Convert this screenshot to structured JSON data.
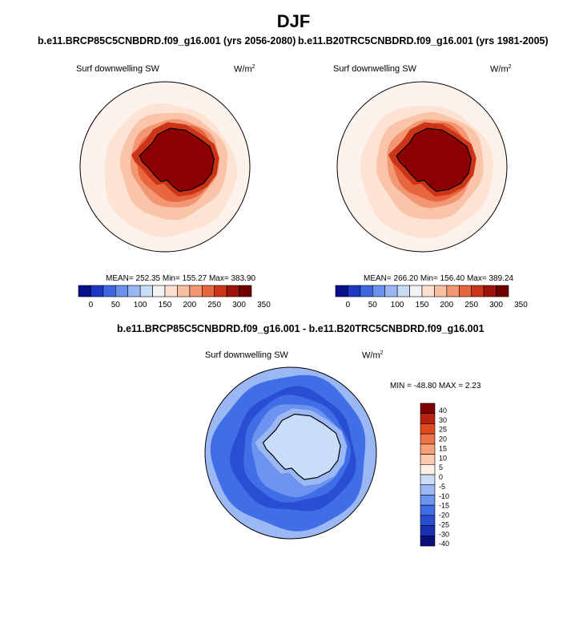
{
  "title": "DJF",
  "colors": {
    "sequential": [
      "#08108a",
      "#1c37c4",
      "#3c67de",
      "#6a92ec",
      "#9bb7f3",
      "#c8dcf8",
      "#f3f3f3",
      "#fde0d0",
      "#f8bfa3",
      "#f29673",
      "#e8663e",
      "#cc3418",
      "#a0130a",
      "#6e0000"
    ],
    "diverging": [
      "#0a0f7a",
      "#1a2fb3",
      "#2a4ed2",
      "#3f6ee6",
      "#6b93ef",
      "#9bb8f5",
      "#c9dcf8",
      "#fff0e6",
      "#fbc9ab",
      "#f6a077",
      "#ee7447",
      "#de4b1f",
      "#b8230d",
      "#7e0000"
    ],
    "outline": "#000000"
  },
  "chart_data": [
    {
      "type": "heatmap",
      "projection": "polar stereographic (south)",
      "title": "b.e11.BRCP85C5CNBDRD.f09_g16.001 (yrs 2056-2080)",
      "variable": "Surf downwelling SW",
      "units": "W/m",
      "units_sup": "2",
      "stats": "MEAN= 252.35  Min= 155.27  Max= 383.90",
      "mean": 252.35,
      "min": 155.27,
      "max": 383.9,
      "colorbar_ticks": [
        "0",
        "50",
        "100",
        "150",
        "200",
        "250",
        "300",
        "350"
      ]
    },
    {
      "type": "heatmap",
      "projection": "polar stereographic (south)",
      "title": "b.e11.B20TRC5CNBDRD.f09_g16.001 (yrs 1981-2005)",
      "variable": "Surf downwelling SW",
      "units": "W/m",
      "units_sup": "2",
      "stats": "MEAN= 266.20  Min= 156.40  Max= 389.24",
      "mean": 266.2,
      "min": 156.4,
      "max": 389.24,
      "colorbar_ticks": [
        "0",
        "50",
        "100",
        "150",
        "200",
        "250",
        "300",
        "350"
      ]
    },
    {
      "type": "heatmap",
      "projection": "polar stereographic (south)",
      "title": "b.e11.BRCP85C5CNBDRD.f09_g16.001 - b.e11.B20TRC5CNBDRD.f09_g16.001",
      "variable": "Surf downwelling SW",
      "units": "W/m",
      "units_sup": "2",
      "stats": "MIN = -48.80 MAX =   2.23",
      "min": -48.8,
      "max": 2.23,
      "colorbar_ticks": [
        "40",
        "30",
        "25",
        "20",
        "15",
        "10",
        "5",
        "0",
        "-5",
        "-10",
        "-15",
        "-20",
        "-25",
        "-30",
        "-40"
      ]
    }
  ]
}
